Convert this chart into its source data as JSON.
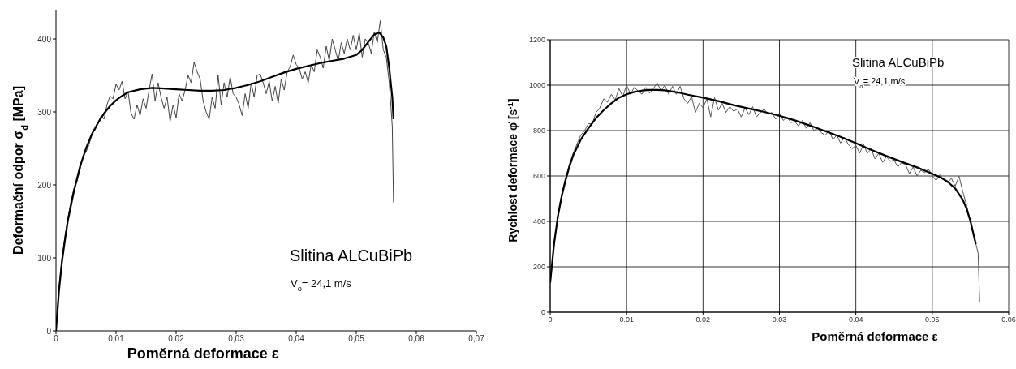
{
  "chart_data": [
    {
      "type": "line",
      "xlabel": "Poměrná deformace   ε",
      "ylabel": "Deformační odpor   σ$_{d}$ [MPa]",
      "annotations": [
        "Slitina   ALCuBiPb",
        "V$_{o}$= 24,1 m/s"
      ],
      "xlim": [
        0,
        0.07
      ],
      "xticks": [
        0,
        {
          "value": 0.01,
          "label": "0,01"
        },
        {
          "value": 0.02,
          "label": "0,02"
        },
        {
          "value": 0.03,
          "label": "0,03"
        },
        {
          "value": 0.04,
          "label": "0,04"
        },
        {
          "value": 0.05,
          "label": "0,05"
        },
        {
          "value": 0.06,
          "label": "0,06"
        },
        {
          "value": 0.07,
          "label": "0,07"
        }
      ],
      "ylim": [
        0,
        440
      ],
      "yticks": [
        0,
        100,
        200,
        300,
        400
      ],
      "grid": false,
      "marker": "none",
      "series": [
        {
          "type": "line",
          "color": "#444444",
          "x": [
            0,
            0.0005,
            0.001,
            0.0015,
            0.002,
            0.0025,
            0.003,
            0.0035,
            0.004,
            0.0045,
            0.005,
            0.0055,
            0.006,
            0.0065,
            0.007,
            0.0075,
            0.008,
            0.0085,
            0.009,
            0.0095,
            0.01,
            0.0105,
            0.011,
            0.0115,
            0.012,
            0.0125,
            0.013,
            0.0135,
            0.014,
            0.0145,
            0.015,
            0.0155,
            0.016,
            0.0165,
            0.017,
            0.0175,
            0.018,
            0.0185,
            0.019,
            0.0195,
            0.02,
            0.0205,
            0.021,
            0.0215,
            0.022,
            0.0225,
            0.023,
            0.0235,
            0.024,
            0.0245,
            0.025,
            0.0255,
            0.026,
            0.0265,
            0.027,
            0.0275,
            0.028,
            0.0285,
            0.029,
            0.0295,
            0.03,
            0.0305,
            0.031,
            0.0315,
            0.032,
            0.0325,
            0.033,
            0.0335,
            0.034,
            0.0345,
            0.035,
            0.0355,
            0.036,
            0.0365,
            0.037,
            0.0375,
            0.038,
            0.0385,
            0.039,
            0.0395,
            0.04,
            0.0405,
            0.041,
            0.0415,
            0.042,
            0.0425,
            0.043,
            0.0435,
            0.044,
            0.0445,
            0.045,
            0.0455,
            0.046,
            0.0465,
            0.047,
            0.0475,
            0.048,
            0.0485,
            0.049,
            0.0495,
            0.05,
            0.0505,
            0.051,
            0.0515,
            0.052,
            0.0525,
            0.053,
            0.0535,
            0.054,
            0.0545,
            0.055,
            0.0555,
            0.056,
            0.0562
          ],
          "values": [
            0,
            60,
            100,
            130,
            155,
            178,
            195,
            205,
            220,
            240,
            245,
            255,
            270,
            275,
            285,
            295,
            290,
            310,
            322,
            318,
            338,
            330,
            342,
            318,
            328,
            298,
            290,
            310,
            295,
            318,
            305,
            330,
            352,
            315,
            340,
            320,
            305,
            320,
            287,
            310,
            292,
            325,
            315,
            330,
            350,
            340,
            368,
            355,
            345,
            315,
            300,
            290,
            320,
            305,
            350,
            310,
            340,
            320,
            348,
            325,
            320,
            310,
            295,
            325,
            305,
            340,
            320,
            350,
            352,
            340,
            325,
            342,
            315,
            335,
            312,
            345,
            330,
            355,
            362,
            378,
            365,
            360,
            345,
            355,
            340,
            365,
            355,
            385,
            375,
            360,
            390,
            370,
            400,
            385,
            370,
            395,
            380,
            400,
            385,
            405,
            385,
            408,
            375,
            400,
            395,
            380,
            410,
            395,
            425,
            385,
            375,
            340,
            280,
            176
          ]
        },
        {
          "type": "line",
          "color": "#000000",
          "x": [
            0,
            0.0005,
            0.001,
            0.0015,
            0.002,
            0.003,
            0.004,
            0.005,
            0.006,
            0.007,
            0.008,
            0.009,
            0.01,
            0.011,
            0.012,
            0.014,
            0.016,
            0.018,
            0.02,
            0.022,
            0.024,
            0.026,
            0.028,
            0.03,
            0.032,
            0.034,
            0.036,
            0.038,
            0.04,
            0.042,
            0.044,
            0.046,
            0.048,
            0.05,
            0.051,
            0.052,
            0.053,
            0.0538,
            0.0545,
            0.055,
            0.0555,
            0.056,
            0.0562
          ],
          "values": [
            0,
            55,
            95,
            125,
            152,
            192,
            225,
            250,
            270,
            285,
            298,
            308,
            316,
            322,
            327,
            331,
            333,
            332,
            331,
            330,
            329,
            329,
            330,
            333,
            337,
            342,
            348,
            354,
            359,
            363,
            367,
            370,
            373,
            378,
            385,
            396,
            406,
            409,
            402,
            390,
            360,
            320,
            290
          ]
        }
      ]
    },
    {
      "type": "line",
      "xlabel": "Poměrná deformace   ε",
      "ylabel": "Rychlost deformace   φ̇   [s$^{-1}$]",
      "annotations": [
        "Slitina   ALCuBiPb",
        "V$_{o}$= 24,1 m/s"
      ],
      "xlim": [
        0,
        0.06
      ],
      "xticks": [
        0,
        0.01,
        0.02,
        0.03,
        0.04,
        0.05,
        0.06
      ],
      "ylim": [
        0,
        1200
      ],
      "yticks": [
        0,
        200,
        400,
        600,
        800,
        1000,
        1200
      ],
      "grid": true,
      "marker": "none",
      "series": [
        {
          "type": "line",
          "color": "#555555",
          "x": [
            0,
            0.0005,
            0.001,
            0.0015,
            0.002,
            0.0025,
            0.003,
            0.0035,
            0.004,
            0.0045,
            0.005,
            0.0055,
            0.006,
            0.0065,
            0.007,
            0.0075,
            0.008,
            0.0085,
            0.009,
            0.0095,
            0.01,
            0.0105,
            0.011,
            0.0115,
            0.012,
            0.0125,
            0.013,
            0.0135,
            0.014,
            0.0145,
            0.015,
            0.0155,
            0.016,
            0.0165,
            0.017,
            0.0175,
            0.018,
            0.0185,
            0.019,
            0.0195,
            0.02,
            0.0205,
            0.021,
            0.0215,
            0.022,
            0.0225,
            0.023,
            0.0235,
            0.024,
            0.0245,
            0.025,
            0.0255,
            0.026,
            0.0265,
            0.027,
            0.0275,
            0.028,
            0.0285,
            0.029,
            0.0295,
            0.03,
            0.0305,
            0.031,
            0.0315,
            0.032,
            0.0325,
            0.033,
            0.0335,
            0.034,
            0.0345,
            0.035,
            0.0355,
            0.036,
            0.0365,
            0.037,
            0.0375,
            0.038,
            0.0385,
            0.039,
            0.0395,
            0.04,
            0.0405,
            0.041,
            0.0415,
            0.042,
            0.0425,
            0.043,
            0.0435,
            0.044,
            0.0445,
            0.045,
            0.0455,
            0.046,
            0.0465,
            0.047,
            0.0475,
            0.048,
            0.0485,
            0.049,
            0.0495,
            0.05,
            0.0505,
            0.051,
            0.0515,
            0.052,
            0.0525,
            0.053,
            0.0535,
            0.054,
            0.0545,
            0.055,
            0.0555,
            0.056,
            0.0562
          ],
          "values": [
            130,
            290,
            430,
            520,
            590,
            650,
            700,
            740,
            780,
            800,
            830,
            830,
            880,
            900,
            940,
            925,
            960,
            935,
            985,
            950,
            1000,
            960,
            990,
            975,
            960,
            990,
            965,
            985,
            1010,
            975,
            1000,
            960,
            995,
            960,
            995,
            940,
            920,
            950,
            880,
            920,
            900,
            940,
            860,
            945,
            890,
            920,
            880,
            905,
            885,
            895,
            860,
            900,
            870,
            905,
            860,
            880,
            895,
            870,
            880,
            850,
            875,
            845,
            860,
            835,
            840,
            820,
            845,
            810,
            835,
            800,
            810,
            790,
            780,
            800,
            760,
            780,
            745,
            770,
            740,
            720,
            735,
            700,
            740,
            700,
            720,
            675,
            700,
            660,
            685,
            665,
            670,
            640,
            660,
            650,
            610,
            640,
            600,
            625,
            615,
            630,
            600,
            580,
            605,
            585,
            570,
            590,
            555,
            600,
            530,
            470,
            400,
            330,
            260,
            46
          ]
        },
        {
          "type": "line",
          "color": "#000000",
          "x": [
            0,
            0.0005,
            0.001,
            0.0015,
            0.002,
            0.0025,
            0.003,
            0.004,
            0.005,
            0.006,
            0.007,
            0.008,
            0.009,
            0.01,
            0.011,
            0.012,
            0.013,
            0.014,
            0.015,
            0.016,
            0.017,
            0.018,
            0.02,
            0.022,
            0.024,
            0.026,
            0.028,
            0.03,
            0.032,
            0.034,
            0.036,
            0.038,
            0.04,
            0.042,
            0.044,
            0.046,
            0.048,
            0.05,
            0.051,
            0.052,
            0.053,
            0.054,
            0.0545,
            0.055,
            0.0557
          ],
          "values": [
            130,
            300,
            420,
            510,
            580,
            640,
            690,
            760,
            810,
            855,
            890,
            920,
            945,
            960,
            970,
            976,
            979,
            979,
            977,
            972,
            966,
            958,
            945,
            930,
            912,
            897,
            882,
            865,
            845,
            822,
            797,
            772,
            745,
            715,
            688,
            662,
            638,
            610,
            595,
            575,
            545,
            495,
            455,
            400,
            300
          ]
        }
      ]
    }
  ]
}
